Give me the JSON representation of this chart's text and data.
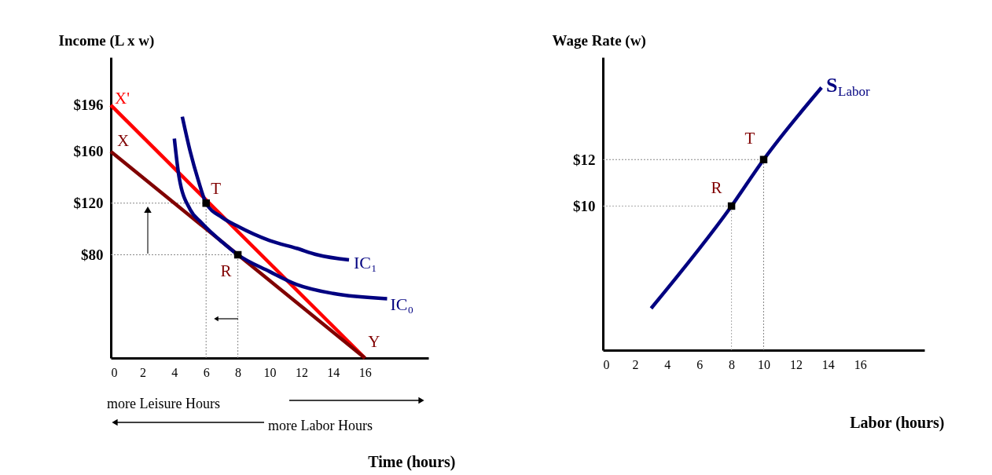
{
  "chart_data": [
    {
      "type": "line",
      "ylabel": "Income (L x w)",
      "xlabel": "Time (hours)",
      "xlim": [
        0,
        20
      ],
      "ylim": [
        0,
        233
      ],
      "xticks": [
        0,
        2,
        4,
        6,
        8,
        10,
        12,
        14,
        16
      ],
      "yticks": [
        {
          "value": 80,
          "label": "$80"
        },
        {
          "value": 120,
          "label": "$120"
        },
        {
          "value": 160,
          "label": "$160"
        },
        {
          "value": 196,
          "label": "$196"
        }
      ],
      "grid": false,
      "line_style": "solid",
      "series": [
        {
          "type": "line",
          "color": "#888888",
          "line_style": "dotted",
          "x": [
            0,
            6
          ],
          "values": [
            120,
            120
          ]
        },
        {
          "type": "line",
          "color": "#888888",
          "line_style": "dotted",
          "x": [
            6,
            6
          ],
          "values": [
            0,
            120
          ]
        },
        {
          "type": "line",
          "color": "#888888",
          "line_style": "dotted",
          "x": [
            0,
            8
          ],
          "values": [
            80,
            80
          ]
        },
        {
          "type": "line",
          "color": "#888888",
          "line_style": "dotted",
          "x": [
            8,
            8
          ],
          "values": [
            0,
            80
          ]
        },
        {
          "type": "line",
          "color": "#ff0000",
          "x": [
            0,
            16
          ],
          "values": [
            196,
            0
          ]
        },
        {
          "type": "line",
          "color": "#800000",
          "x": [
            0,
            16
          ],
          "values": [
            160,
            0
          ]
        },
        {
          "type": "line",
          "name": "IC₁",
          "color": "#000080",
          "x": [
            4.5,
            5,
            5.5,
            6,
            7,
            8,
            10,
            11.7,
            13,
            15
          ],
          "values": [
            187,
            160,
            138,
            120,
            109,
            102,
            91,
            85,
            80,
            76
          ]
        },
        {
          "type": "line",
          "name": "IC₀",
          "color": "#000080",
          "x": [
            4,
            4.3,
            5,
            5.7,
            7,
            8,
            10,
            11.7,
            14,
            17.4
          ],
          "values": [
            170,
            140,
            115,
            105,
            90,
            80,
            67,
            57,
            50,
            46
          ]
        },
        {
          "type": "scatter",
          "color": "#000000",
          "marker": "square",
          "x": [
            6,
            8
          ],
          "values": [
            120,
            80
          ]
        }
      ],
      "annotations": [
        "more Leisure Hours",
        "more Labor Hours",
        {
          "text": "X'",
          "x": 0,
          "y": 196
        },
        {
          "text": "X",
          "x": 0,
          "y": 160
        },
        {
          "text": "Y",
          "x": 16,
          "y": 0
        },
        {
          "text": "T",
          "x": 6,
          "y": 120
        },
        {
          "text": "R",
          "x": 8,
          "y": 80
        }
      ]
    },
    {
      "type": "line",
      "ylabel": "Wage Rate (w)",
      "xlabel": "Labor (hours)",
      "xlim": [
        0,
        20
      ],
      "ylim": [
        3.8,
        16.4
      ],
      "xticks": [
        0,
        2,
        4,
        6,
        8,
        10,
        12,
        14,
        16
      ],
      "yticks": [
        {
          "value": 10,
          "label": "$10"
        },
        {
          "value": 12,
          "label": "$12"
        }
      ],
      "grid": false,
      "line_style": "solid",
      "series": [
        {
          "type": "line",
          "color": "#888888",
          "line_style": "dotted",
          "x": [
            0,
            10
          ],
          "values": [
            12,
            12
          ]
        },
        {
          "type": "line",
          "color": "#888888",
          "line_style": "dotted",
          "x": [
            10,
            10
          ],
          "values": [
            3.8,
            12
          ]
        },
        {
          "type": "line",
          "color": "#aaaaaa",
          "line_style": "dotted",
          "x": [
            0,
            8
          ],
          "values": [
            10,
            10
          ]
        },
        {
          "type": "line",
          "color": "#aaaaaa",
          "line_style": "dotted",
          "x": [
            8,
            8
          ],
          "values": [
            3.8,
            10
          ]
        },
        {
          "type": "line",
          "name": "S$_{Labor}$",
          "color": "#000080",
          "x": [
            3,
            8,
            10,
            13.6
          ],
          "values": [
            5.6,
            10,
            12,
            15.1
          ]
        },
        {
          "type": "scatter",
          "color": "#000000",
          "marker": "square",
          "x": [
            8,
            10
          ],
          "values": [
            10,
            12
          ]
        }
      ],
      "annotations": [
        {
          "text": "T",
          "x": 10,
          "y": 12
        },
        {
          "text": "R",
          "x": 8,
          "y": 10
        }
      ]
    }
  ]
}
